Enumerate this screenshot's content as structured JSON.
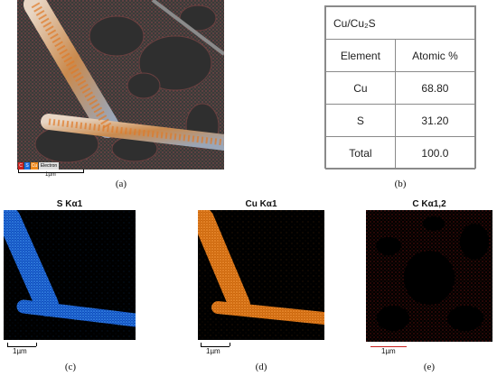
{
  "panel_a": {
    "legend": [
      "C",
      "S",
      "Cu",
      "Electron"
    ],
    "scale_label": "1µm",
    "caption": "(a)"
  },
  "panel_b": {
    "title": "Cu/Cu₂S",
    "headers": [
      "Element",
      "Atomic %"
    ],
    "rows": [
      {
        "element": "Cu",
        "value": "68.80"
      },
      {
        "element": "S",
        "value": "31.20"
      },
      {
        "element": "Total",
        "value": "100.0"
      }
    ],
    "caption": "(b)"
  },
  "panel_c": {
    "title": "S Kα1",
    "scale_label": "1µm",
    "caption": "(c)",
    "color": "#1a6fe0"
  },
  "panel_d": {
    "title": "Cu Kα1",
    "scale_label": "1µm",
    "caption": "(d)",
    "color": "#f08a1c"
  },
  "panel_e": {
    "title": "C Kα1,2",
    "scale_label": "1µm",
    "caption": "(e)",
    "color": "#c8201e"
  },
  "colors": {
    "sem_background": "#3b3b3b",
    "carbon_mesh": "#a84a4a",
    "wire": "#c9a27a"
  }
}
